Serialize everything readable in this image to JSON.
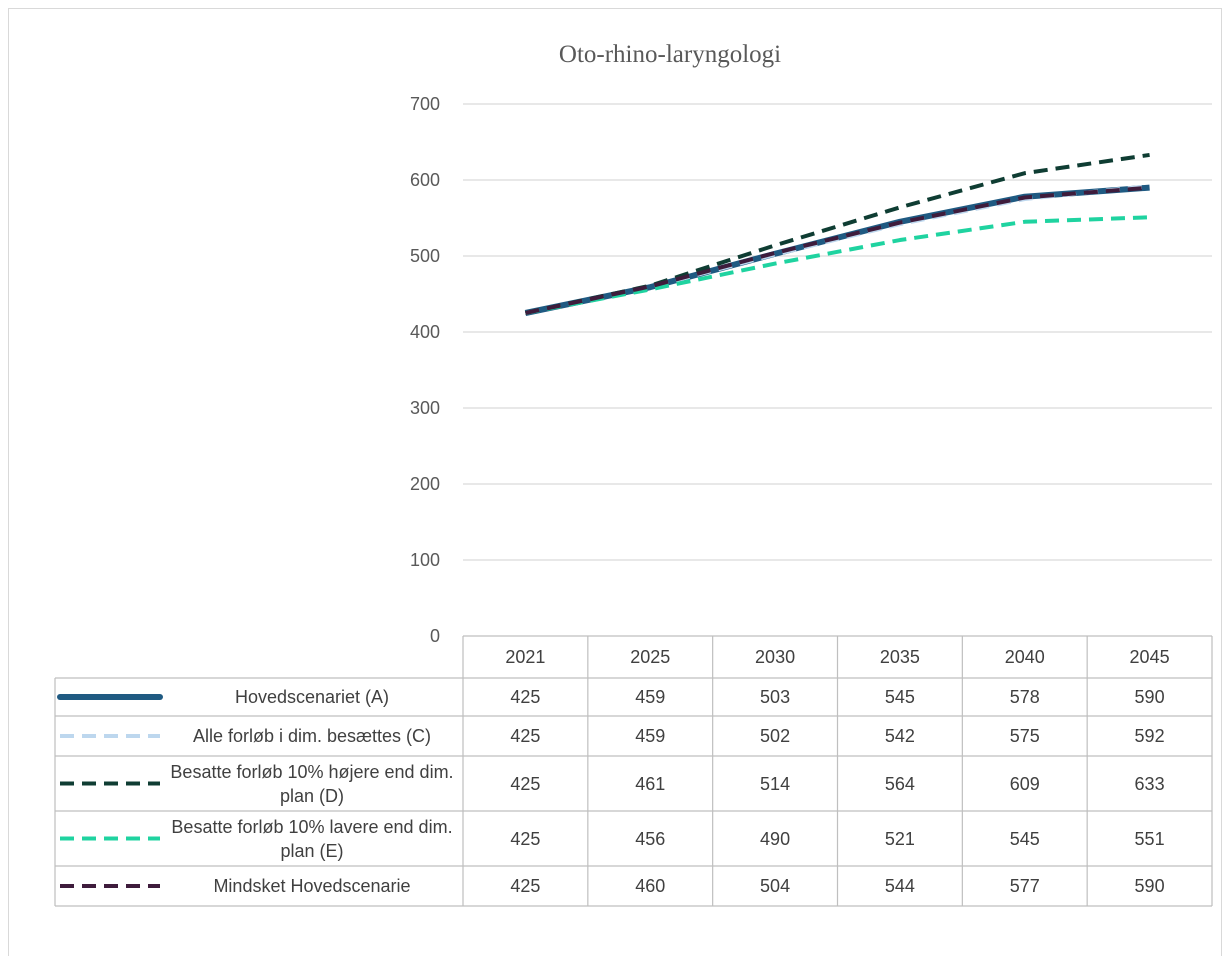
{
  "chart_data": {
    "type": "line",
    "title": "Oto-rhino-laryngologi",
    "categories": [
      "2021",
      "2025",
      "2030",
      "2035",
      "2040",
      "2045"
    ],
    "series": [
      {
        "name": "Hovedscenariet (A)",
        "color": "#1f5a82",
        "line_style": "solid",
        "values": [
          425,
          459,
          503,
          545,
          578,
          590
        ]
      },
      {
        "name": "Alle forløb i dim. besættes (C)",
        "color": "#bdd7ee",
        "line_style": "dashed",
        "values": [
          425,
          459,
          502,
          542,
          575,
          592
        ]
      },
      {
        "name": "Besatte forløb 10% højere end dim. plan (D)",
        "color": "#0f3d33",
        "line_style": "dashed",
        "values": [
          425,
          461,
          514,
          564,
          609,
          633
        ]
      },
      {
        "name": "Besatte forløb 10% lavere end dim. plan (E)",
        "color": "#1fd3a0",
        "line_style": "dashed",
        "values": [
          425,
          456,
          490,
          521,
          545,
          551
        ]
      },
      {
        "name": "Mindsket Hovedscenarie",
        "color": "#3e1c3c",
        "line_style": "dashed",
        "values": [
          425,
          460,
          504,
          544,
          577,
          590
        ]
      }
    ],
    "ylim": [
      0,
      700
    ],
    "yticks": [
      0,
      100,
      200,
      300,
      400,
      500,
      600,
      700
    ],
    "grid": true
  }
}
